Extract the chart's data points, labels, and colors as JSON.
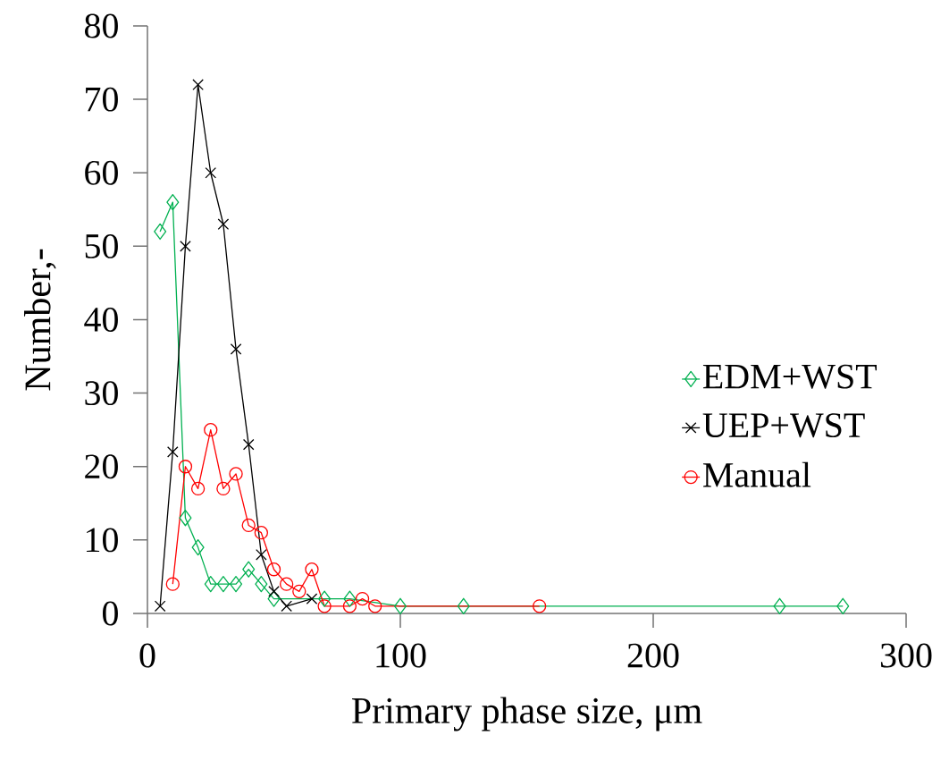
{
  "chart_data": {
    "type": "line",
    "xlabel": "Primary phase size, μm",
    "ylabel": "Number,-",
    "xlim": [
      0,
      300
    ],
    "xticks": [
      0,
      100,
      200,
      300
    ],
    "ylim": [
      0,
      80
    ],
    "yticks": [
      0,
      10,
      20,
      30,
      40,
      50,
      60,
      70,
      80
    ],
    "grid": false,
    "legend": "right",
    "series": [
      {
        "name": "EDM+WST",
        "color": "#00b050",
        "marker": "diamond",
        "x": [
          5,
          10,
          15,
          20,
          25,
          30,
          35,
          40,
          45,
          50,
          70,
          80,
          100,
          125,
          250,
          275
        ],
        "values": [
          52,
          56,
          13,
          9,
          4,
          4,
          4,
          6,
          4,
          2,
          2,
          2,
          1,
          1,
          1,
          1
        ]
      },
      {
        "name": "UEP+WST",
        "color": "#000000",
        "marker": "cross",
        "x": [
          5,
          10,
          15,
          20,
          25,
          30,
          35,
          40,
          45,
          50,
          55,
          65
        ],
        "values": [
          1,
          22,
          50,
          72,
          60,
          53,
          36,
          23,
          8,
          3,
          1,
          2
        ]
      },
      {
        "name": "Manual",
        "color": "#ff0000",
        "marker": "circle",
        "x": [
          10,
          15,
          20,
          25,
          30,
          35,
          40,
          45,
          50,
          55,
          60,
          65,
          70,
          80,
          85,
          90,
          155
        ],
        "values": [
          4,
          20,
          17,
          25,
          17,
          19,
          12,
          11,
          6,
          4,
          3,
          6,
          1,
          1,
          2,
          1,
          1
        ]
      }
    ]
  }
}
